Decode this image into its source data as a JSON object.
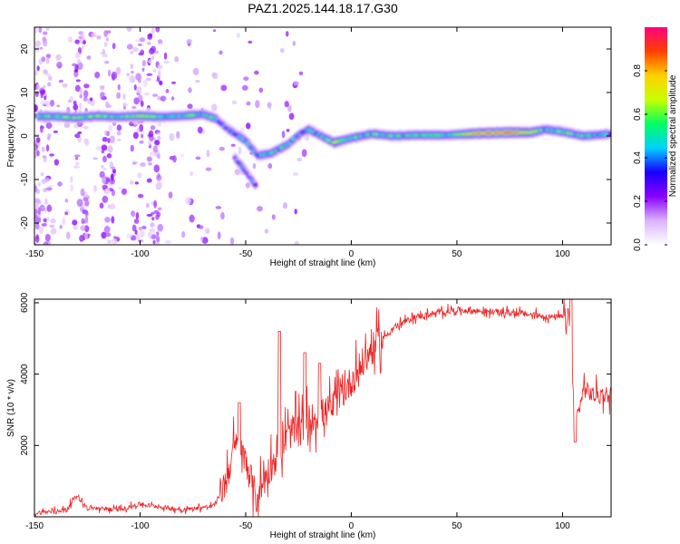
{
  "chart_data": [
    {
      "type": "heatmap",
      "title": "PAZ1.2025.144.18.17.G30",
      "xlabel": "Height of straight line (km)",
      "ylabel": "Frequency (Hz)",
      "xlim": [
        -150,
        123
      ],
      "ylim": [
        -25,
        25
      ],
      "xticks": [
        -150,
        -100,
        -50,
        0,
        50,
        100
      ],
      "yticks": [
        -20,
        -10,
        0,
        10,
        20
      ],
      "colorbar": {
        "label": "Normalized spectral amplitude",
        "range": [
          0,
          1
        ],
        "ticks": [
          "0.0",
          "0.2",
          "0.4",
          "0.6",
          "0.8"
        ],
        "colors": [
          "#ffffff",
          "#d9b3ff",
          "#8a00ff",
          "#1a00ff",
          "#00d0ff",
          "#00ff60",
          "#c8ff00",
          "#ffd000",
          "#ff4000",
          "#ff0080"
        ]
      },
      "ridge": [
        {
          "x": -148,
          "f": 4.5,
          "a": 0.55
        },
        {
          "x": -140,
          "f": 4.5,
          "a": 0.5
        },
        {
          "x": -130,
          "f": 4.2,
          "a": 0.55
        },
        {
          "x": -120,
          "f": 4.6,
          "a": 0.55
        },
        {
          "x": -110,
          "f": 4.4,
          "a": 0.55
        },
        {
          "x": -100,
          "f": 4.6,
          "a": 0.55
        },
        {
          "x": -90,
          "f": 4.4,
          "a": 0.5
        },
        {
          "x": -80,
          "f": 4.6,
          "a": 0.5
        },
        {
          "x": -70,
          "f": 5.0,
          "a": 0.5
        },
        {
          "x": -64,
          "f": 4.0,
          "a": 0.45
        },
        {
          "x": -58,
          "f": 1.5,
          "a": 0.4
        },
        {
          "x": -50,
          "f": -1.0,
          "a": 0.4
        },
        {
          "x": -44,
          "f": -4.5,
          "a": 0.45
        },
        {
          "x": -38,
          "f": -4.0,
          "a": 0.5
        },
        {
          "x": -30,
          "f": -2.0,
          "a": 0.45
        },
        {
          "x": -24,
          "f": 0.5,
          "a": 0.45
        },
        {
          "x": -20,
          "f": 1.5,
          "a": 0.45
        },
        {
          "x": -14,
          "f": 0.0,
          "a": 0.45
        },
        {
          "x": -8,
          "f": -1.5,
          "a": 0.6
        },
        {
          "x": 0,
          "f": -0.5,
          "a": 0.5
        },
        {
          "x": 10,
          "f": 0.5,
          "a": 0.5
        },
        {
          "x": 20,
          "f": 0.0,
          "a": 0.5
        },
        {
          "x": 30,
          "f": 0.2,
          "a": 0.5
        },
        {
          "x": 45,
          "f": 0.2,
          "a": 0.5
        },
        {
          "x": 60,
          "f": 0.6,
          "a": 0.75
        },
        {
          "x": 75,
          "f": 0.8,
          "a": 0.85
        },
        {
          "x": 85,
          "f": 0.8,
          "a": 0.7
        },
        {
          "x": 92,
          "f": 1.5,
          "a": 0.5
        },
        {
          "x": 100,
          "f": 1.0,
          "a": 0.55
        },
        {
          "x": 110,
          "f": 0.0,
          "a": 0.5
        },
        {
          "x": 118,
          "f": 0.3,
          "a": 0.45
        },
        {
          "x": 123,
          "f": 0.5,
          "a": 0.4
        }
      ],
      "branch": [
        {
          "x": -55,
          "f": -5.0,
          "a": 0.35
        },
        {
          "x": -50,
          "f": -8.0,
          "a": 0.35
        },
        {
          "x": -45,
          "f": -11.5,
          "a": 0.3
        }
      ]
    },
    {
      "type": "line",
      "title": "",
      "xlabel": "Height of straight line (km)",
      "ylabel": "SNR (10 * v/v)",
      "xlim": [
        -150,
        123
      ],
      "ylim": [
        0,
        6100
      ],
      "xticks": [
        -150,
        -100,
        -50,
        0,
        50,
        100
      ],
      "yticks": [
        2000,
        4000,
        6000
      ],
      "series": [
        {
          "color": "#ee2222",
          "trend": [
            {
              "x": -150,
              "y": 100
            },
            {
              "x": -135,
              "y": 200
            },
            {
              "x": -130,
              "y": 600
            },
            {
              "x": -125,
              "y": 250
            },
            {
              "x": -110,
              "y": 200
            },
            {
              "x": -100,
              "y": 350
            },
            {
              "x": -80,
              "y": 200
            },
            {
              "x": -65,
              "y": 300
            },
            {
              "x": -60,
              "y": 900
            },
            {
              "x": -55,
              "y": 2000
            },
            {
              "x": -50,
              "y": 1600
            },
            {
              "x": -45,
              "y": 500
            },
            {
              "x": -40,
              "y": 1200
            },
            {
              "x": -30,
              "y": 2300
            },
            {
              "x": -20,
              "y": 2700
            },
            {
              "x": -10,
              "y": 3000
            },
            {
              "x": 0,
              "y": 3800
            },
            {
              "x": 10,
              "y": 4700
            },
            {
              "x": 20,
              "y": 5300
            },
            {
              "x": 30,
              "y": 5600
            },
            {
              "x": 50,
              "y": 5800
            },
            {
              "x": 80,
              "y": 5700
            },
            {
              "x": 95,
              "y": 5600
            },
            {
              "x": 103,
              "y": 5600
            },
            {
              "x": 105,
              "y": 3500
            },
            {
              "x": 107,
              "y": 2800
            },
            {
              "x": 110,
              "y": 3600
            },
            {
              "x": 115,
              "y": 3400
            },
            {
              "x": 123,
              "y": 3450
            }
          ],
          "peaks": [
            {
              "x": -53,
              "y": 3200
            },
            {
              "x": -34,
              "y": 5200
            },
            {
              "x": -22,
              "y": 4600
            },
            {
              "x": -15,
              "y": 4300
            },
            {
              "x": 104,
              "y": 6100
            },
            {
              "x": 106,
              "y": 2100
            }
          ]
        }
      ]
    }
  ]
}
